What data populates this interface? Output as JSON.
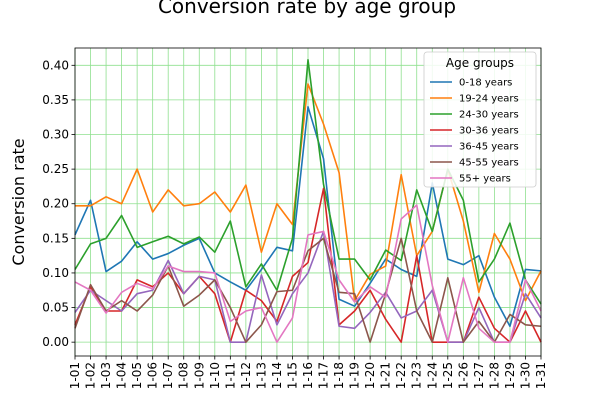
{
  "chart_data": {
    "type": "line",
    "title": "Conversion rate by age group",
    "xlabel": "",
    "ylabel": "Conversion rate",
    "ylim": [
      -0.02,
      0.425
    ],
    "yticks": [
      "0.00",
      "0.05",
      "0.10",
      "0.15",
      "0.20",
      "0.25",
      "0.30",
      "0.35",
      "0.40"
    ],
    "grid": true,
    "legend_title": "Age groups",
    "legend_position": "top-right",
    "x": [
      "1-01",
      "1-02",
      "1-03",
      "1-04",
      "1-05",
      "1-06",
      "1-07",
      "1-08",
      "1-09",
      "1-10",
      "1-11",
      "1-12",
      "1-13",
      "1-14",
      "1-15",
      "1-16",
      "1-17",
      "1-18",
      "1-19",
      "1-20",
      "1-21",
      "1-22",
      "1-23",
      "1-24",
      "1-25",
      "1-26",
      "1-27",
      "1-28",
      "1-29",
      "1-30",
      "1-31"
    ],
    "series": [
      {
        "name": "0-18 years",
        "color": "#1f77b4",
        "values": [
          0.155,
          0.205,
          0.102,
          0.117,
          0.145,
          0.12,
          0.128,
          0.14,
          0.15,
          0.1,
          0.087,
          0.075,
          0.105,
          0.137,
          0.132,
          0.34,
          0.265,
          0.062,
          0.052,
          0.085,
          0.12,
          0.105,
          0.095,
          0.23,
          0.12,
          0.112,
          0.125,
          0.065,
          0.023,
          0.105,
          0.103
        ]
      },
      {
        "name": "19-24 years",
        "color": "#ff7f0e",
        "values": [
          0.197,
          0.197,
          0.21,
          0.2,
          0.25,
          0.188,
          0.22,
          0.197,
          0.2,
          0.217,
          0.188,
          0.227,
          0.13,
          0.2,
          0.17,
          0.373,
          0.315,
          0.245,
          0.06,
          0.098,
          0.11,
          0.242,
          0.125,
          0.16,
          0.25,
          0.175,
          0.072,
          0.157,
          0.12,
          0.06,
          0.103
        ]
      },
      {
        "name": "24-30 years",
        "color": "#2ca02c",
        "values": [
          0.105,
          0.142,
          0.15,
          0.183,
          0.137,
          0.145,
          0.153,
          0.142,
          0.152,
          0.13,
          0.175,
          0.08,
          0.113,
          0.075,
          0.15,
          0.408,
          0.228,
          0.12,
          0.12,
          0.09,
          0.133,
          0.118,
          0.22,
          0.16,
          0.25,
          0.205,
          0.087,
          0.12,
          0.172,
          0.09,
          0.055
        ]
      },
      {
        "name": "30-36 years",
        "color": "#d62728",
        "values": [
          0.025,
          0.08,
          0.045,
          0.045,
          0.09,
          0.08,
          0.1,
          0.07,
          0.095,
          0.07,
          0.0,
          0.075,
          0.06,
          0.03,
          0.095,
          0.115,
          0.222,
          0.025,
          0.045,
          0.075,
          0.033,
          0.0,
          0.125,
          0.0,
          0.0,
          0.0,
          0.065,
          0.02,
          0.0,
          0.045,
          0.0
        ]
      },
      {
        "name": "36-45 years",
        "color": "#9467bd",
        "values": [
          0.043,
          0.075,
          0.06,
          0.045,
          0.07,
          0.075,
          0.118,
          0.07,
          0.095,
          0.09,
          0.0,
          0.0,
          0.097,
          0.025,
          0.07,
          0.1,
          0.16,
          0.023,
          0.02,
          0.043,
          0.072,
          0.035,
          0.045,
          0.075,
          0.0,
          0.0,
          0.05,
          0.0,
          0.0,
          0.07,
          0.035
        ]
      },
      {
        "name": "45-55 years",
        "color": "#8c564b",
        "values": [
          0.02,
          0.083,
          0.045,
          0.06,
          0.045,
          0.068,
          0.11,
          0.052,
          0.068,
          0.09,
          0.05,
          0.0,
          0.025,
          0.073,
          0.075,
          0.132,
          0.15,
          0.072,
          0.07,
          0.0,
          0.07,
          0.15,
          0.045,
          0.0,
          0.093,
          0.0,
          0.03,
          0.0,
          0.04,
          0.025,
          0.023
        ]
      },
      {
        "name": "55+ years",
        "color": "#e377c2",
        "values": [
          0.087,
          0.075,
          0.042,
          0.072,
          0.085,
          0.077,
          0.11,
          0.102,
          0.102,
          0.1,
          0.03,
          0.045,
          0.05,
          0.0,
          0.035,
          0.155,
          0.16,
          0.09,
          0.058,
          0.08,
          0.065,
          0.178,
          0.198,
          0.082,
          0.0,
          0.093,
          0.02,
          0.0,
          0.0,
          0.09,
          0.045
        ]
      }
    ]
  }
}
